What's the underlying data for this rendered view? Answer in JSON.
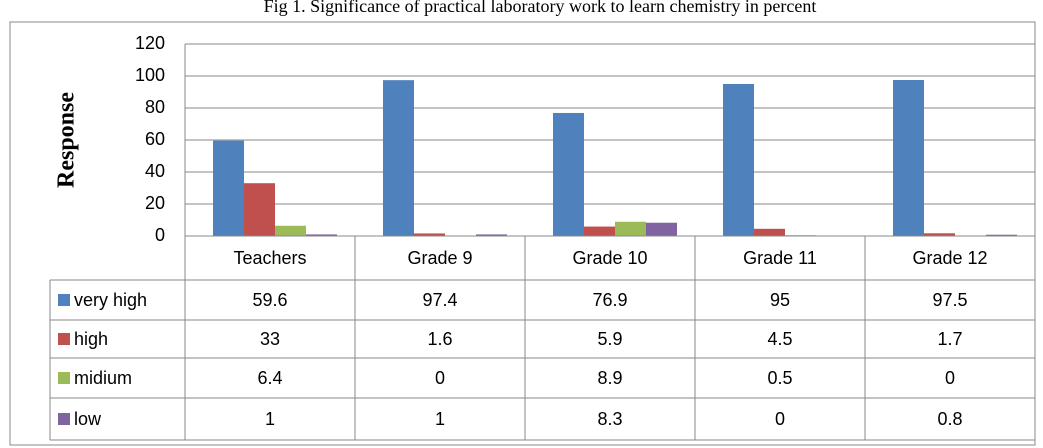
{
  "chart_data": {
    "type": "bar",
    "title": "Fig 1. Significance of practical laboratory work to learn chemistry in percent",
    "ylabel": "Response",
    "categories": [
      "Teachers",
      "Grade 9",
      "Grade 10",
      "Grade 11",
      "Grade 12"
    ],
    "series": [
      {
        "name": "very high",
        "color": "#4f81bd",
        "values": [
          59.6,
          97.4,
          76.9,
          95,
          97.5
        ]
      },
      {
        "name": "high",
        "color": "#c0504d",
        "values": [
          33,
          1.6,
          5.9,
          4.5,
          1.7
        ]
      },
      {
        "name": "midium",
        "color": "#9bbb59",
        "values": [
          6.4,
          0,
          8.9,
          0.5,
          0
        ]
      },
      {
        "name": "low",
        "color": "#8064a2",
        "values": [
          1,
          1,
          8.3,
          0,
          0.8
        ]
      }
    ],
    "ylim": [
      0,
      120
    ],
    "yticks": [
      0,
      20,
      40,
      60,
      80,
      100,
      120
    ],
    "grid": true,
    "data_table": true
  }
}
